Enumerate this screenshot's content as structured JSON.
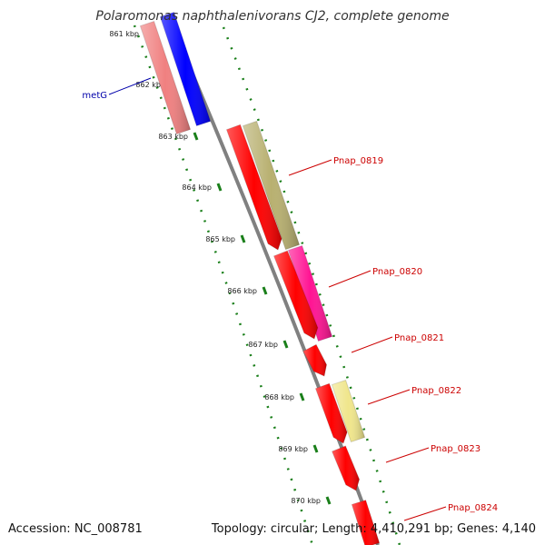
{
  "title": "Polaromonas naphthalenivorans CJ2, complete genome",
  "footer": {
    "accession": "Accession: NC_008781",
    "stats": "Topology: circular; Length: 4,410,291 bp; Genes: 4,140"
  },
  "colors": {
    "backbone": "#808080",
    "tick": "#1a7f1a",
    "gene_label": "#cc0000",
    "metG_label": "#0000aa"
  },
  "ticks": [
    "861 kbp",
    "862 kbp",
    "863 kbp",
    "864 kbp",
    "865 kbp",
    "866 kbp",
    "867 kbp",
    "868 kbp",
    "869 kbp",
    "870 kbp"
  ],
  "genes": [
    {
      "label": "metG",
      "color": "#0000ff"
    },
    {
      "label": "",
      "color": "#f08080"
    },
    {
      "label": "",
      "color": "#b8b070"
    },
    {
      "label": "Pnap_0819",
      "color": "#ff0000"
    },
    {
      "label": "",
      "color": "#ff1493"
    },
    {
      "label": "Pnap_0820",
      "color": "#ff0000"
    },
    {
      "label": "Pnap_0821",
      "color": "#ff0000"
    },
    {
      "label": "",
      "color": "#f0e68c"
    },
    {
      "label": "Pnap_0822",
      "color": "#ff0000"
    },
    {
      "label": "Pnap_0823",
      "color": "#ff0000"
    },
    {
      "label": "Pnap_0824",
      "color": "#ff0000"
    }
  ]
}
